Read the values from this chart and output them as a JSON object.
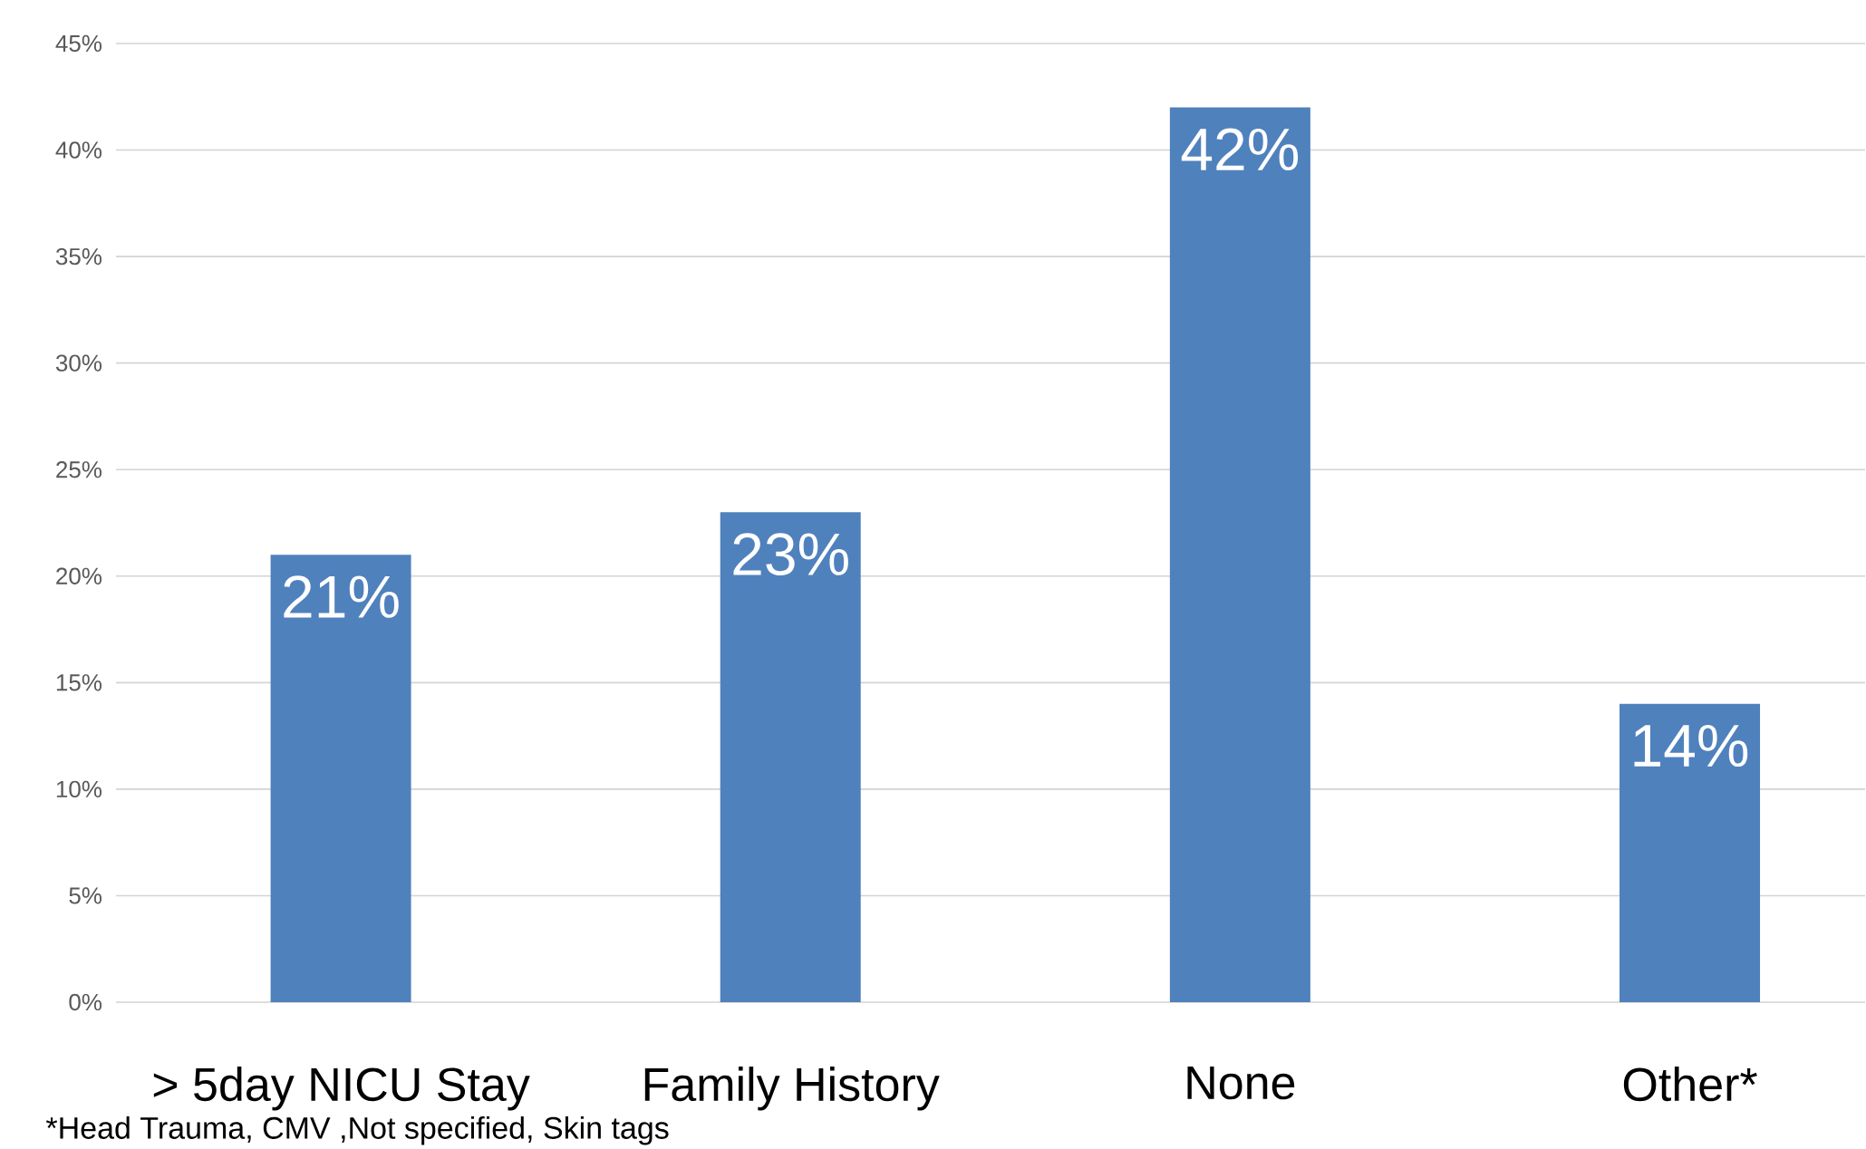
{
  "chart_data": {
    "type": "bar",
    "categories": [
      "> 5day NICU Stay",
      "Family History",
      "None",
      "Other*"
    ],
    "values": [
      21,
      23,
      42,
      14
    ],
    "value_labels": [
      "21%",
      "23%",
      "42%",
      "14%"
    ],
    "color": "#4f81bd",
    "ylim": [
      0,
      45
    ],
    "yticks": [
      {
        "value": 0,
        "label": "0%"
      },
      {
        "value": 5,
        "label": "5%"
      },
      {
        "value": 10,
        "label": "10%"
      },
      {
        "value": 15,
        "label": "15%"
      },
      {
        "value": 20,
        "label": "20%"
      },
      {
        "value": 25,
        "label": "25%"
      },
      {
        "value": 30,
        "label": "30%"
      },
      {
        "value": 35,
        "label": "35%"
      },
      {
        "value": 40,
        "label": "40%"
      },
      {
        "value": 45,
        "label": "45%"
      }
    ],
    "grid": "y",
    "annotations": [
      "*Head Trauma, CMV ,Not specified, Skin tags"
    ]
  }
}
